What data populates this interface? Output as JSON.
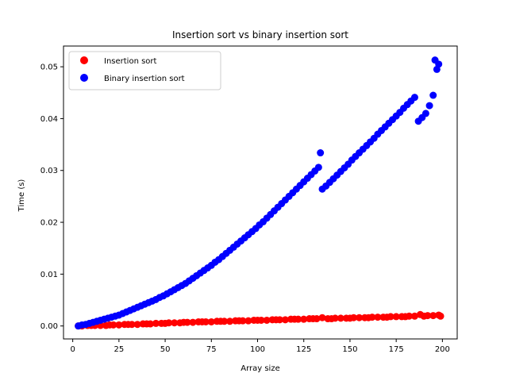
{
  "chart_data": {
    "type": "scatter",
    "title": "Insertion sort vs binary insertion sort",
    "xlabel": "Array size",
    "ylabel": "Time (s)",
    "xlim": [
      -5,
      208
    ],
    "ylim": [
      -0.0025,
      0.054
    ],
    "xticks": [
      0,
      25,
      50,
      75,
      100,
      125,
      150,
      175,
      200
    ],
    "xtick_labels": [
      "0",
      "25",
      "50",
      "75",
      "100",
      "125",
      "150",
      "175",
      "200"
    ],
    "yticks": [
      0.0,
      0.01,
      0.02,
      0.03,
      0.04,
      0.05
    ],
    "ytick_labels": [
      "0.00",
      "0.01",
      "0.02",
      "0.03",
      "0.04",
      "0.05"
    ],
    "grid": false,
    "legend_position": "upper-left",
    "series": [
      {
        "name": "Insertion sort",
        "color": "#ff0000",
        "x": [
          3,
          5,
          8,
          10,
          12,
          15,
          18,
          20,
          22,
          25,
          28,
          30,
          32,
          35,
          38,
          40,
          42,
          45,
          48,
          50,
          52,
          55,
          58,
          60,
          62,
          65,
          68,
          70,
          72,
          75,
          78,
          80,
          82,
          85,
          88,
          90,
          92,
          95,
          98,
          100,
          102,
          105,
          108,
          110,
          112,
          115,
          118,
          120,
          122,
          125,
          128,
          130,
          132,
          135,
          138,
          140,
          142,
          145,
          148,
          150,
          152,
          155,
          158,
          160,
          162,
          165,
          168,
          170,
          172,
          175,
          178,
          180,
          182,
          185,
          188,
          190,
          192,
          195,
          198,
          199
        ],
        "y": [
          0.0,
          0.0,
          0.0001,
          0.0001,
          0.0001,
          0.0001,
          0.0001,
          0.0002,
          0.0002,
          0.0002,
          0.0003,
          0.0003,
          0.0003,
          0.0003,
          0.0004,
          0.0004,
          0.0004,
          0.0005,
          0.0005,
          0.0005,
          0.0006,
          0.0006,
          0.0006,
          0.0007,
          0.0007,
          0.0007,
          0.0008,
          0.0008,
          0.0008,
          0.0008,
          0.0009,
          0.0009,
          0.0009,
          0.0009,
          0.001,
          0.001,
          0.001,
          0.001,
          0.0011,
          0.0011,
          0.0011,
          0.0011,
          0.0012,
          0.0012,
          0.0012,
          0.0012,
          0.0013,
          0.0013,
          0.0013,
          0.0013,
          0.0014,
          0.0014,
          0.0014,
          0.0016,
          0.0014,
          0.0014,
          0.0015,
          0.0015,
          0.0015,
          0.0015,
          0.0016,
          0.0016,
          0.0016,
          0.0016,
          0.0017,
          0.0017,
          0.0017,
          0.0017,
          0.0018,
          0.0018,
          0.0018,
          0.0018,
          0.0019,
          0.0019,
          0.0022,
          0.0019,
          0.002,
          0.002,
          0.0021,
          0.0019
        ]
      },
      {
        "name": "Binary insertion sort",
        "color": "#0000ff",
        "x": [
          3,
          5,
          7,
          9,
          11,
          13,
          15,
          17,
          19,
          21,
          23,
          25,
          27,
          29,
          31,
          33,
          35,
          37,
          39,
          41,
          43,
          45,
          47,
          49,
          51,
          53,
          55,
          57,
          59,
          61,
          63,
          65,
          67,
          69,
          71,
          73,
          75,
          77,
          79,
          81,
          83,
          85,
          87,
          89,
          91,
          93,
          95,
          97,
          99,
          101,
          103,
          105,
          107,
          109,
          111,
          113,
          115,
          117,
          119,
          121,
          123,
          125,
          127,
          129,
          131,
          133,
          134,
          135,
          137,
          139,
          141,
          143,
          145,
          147,
          149,
          151,
          153,
          155,
          157,
          159,
          161,
          163,
          165,
          167,
          169,
          171,
          173,
          175,
          177,
          179,
          181,
          183,
          185,
          187,
          189,
          191,
          193,
          195,
          196,
          197,
          198
        ],
        "y": [
          0.0,
          0.0002,
          0.0003,
          0.0005,
          0.0007,
          0.0009,
          0.0011,
          0.0013,
          0.0015,
          0.0017,
          0.0019,
          0.0021,
          0.0024,
          0.0027,
          0.003,
          0.0033,
          0.0036,
          0.0039,
          0.0042,
          0.0045,
          0.0048,
          0.0051,
          0.0055,
          0.0058,
          0.0062,
          0.0066,
          0.007,
          0.0074,
          0.0078,
          0.0082,
          0.0087,
          0.0092,
          0.0097,
          0.0102,
          0.0107,
          0.0112,
          0.0117,
          0.0123,
          0.0128,
          0.0134,
          0.014,
          0.0146,
          0.0152,
          0.0158,
          0.0164,
          0.017,
          0.0176,
          0.0182,
          0.0188,
          0.0195,
          0.0201,
          0.0208,
          0.0215,
          0.0222,
          0.0229,
          0.0236,
          0.0243,
          0.025,
          0.0257,
          0.0264,
          0.0271,
          0.0278,
          0.0285,
          0.0292,
          0.0299,
          0.0306,
          0.0334,
          0.0264,
          0.027,
          0.0277,
          0.0284,
          0.0291,
          0.0298,
          0.0305,
          0.0312,
          0.032,
          0.0327,
          0.0334,
          0.0341,
          0.0348,
          0.0355,
          0.0362,
          0.037,
          0.0377,
          0.0384,
          0.0391,
          0.0398,
          0.0405,
          0.0412,
          0.042,
          0.0427,
          0.0434,
          0.0441,
          0.0395,
          0.0402,
          0.041,
          0.0425,
          0.0445,
          0.0513,
          0.0495,
          0.0505
        ]
      }
    ]
  }
}
